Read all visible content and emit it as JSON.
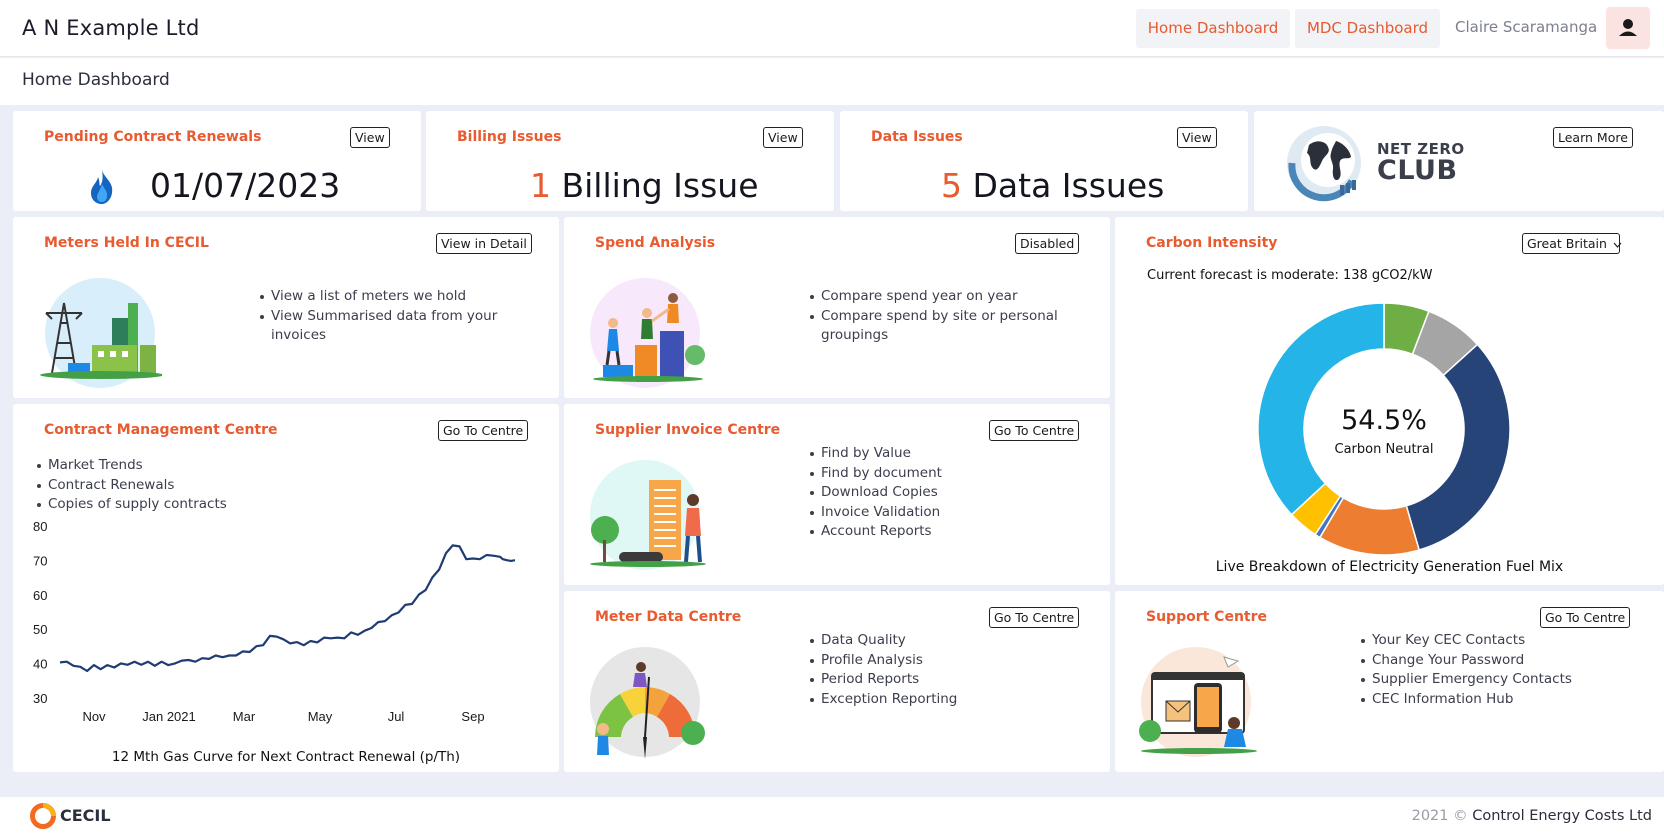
{
  "header": {
    "company": "A N Example Ltd",
    "nav": [
      "Home Dashboard",
      "MDC Dashboard"
    ],
    "user_name": "Claire Scaramanga",
    "avatar_icon": "user-icon"
  },
  "page": {
    "title": "Home Dashboard"
  },
  "summary_cards": {
    "renewals": {
      "title": "Pending Contract Renewals",
      "button": "View",
      "date": "01/07/2023",
      "icon": "gas-flame-icon"
    },
    "billing": {
      "title": "Billing Issues",
      "button": "View",
      "count": "1",
      "label": "Billing Issue"
    },
    "data": {
      "title": "Data Issues",
      "button": "View",
      "count": "5",
      "label": "Data Issues"
    },
    "netzero": {
      "logo_text_1": "NET ZERO",
      "logo_text_2": "CLUB",
      "button": "Learn More"
    }
  },
  "meters": {
    "title": "Meters Held In CECIL",
    "button": "View in Detail",
    "bullets": [
      "View a list of meters we hold",
      "View Summarised data from your invoices"
    ]
  },
  "spend": {
    "title": "Spend Analysis",
    "button": "Disabled",
    "bullets": [
      "Compare spend year on year",
      "Compare spend by site or personal groupings"
    ]
  },
  "carbon": {
    "title": "Carbon Intensity",
    "region": "Great Britain",
    "forecast": "Current forecast is moderate: 138 gCO2/kW",
    "center_value": "54.5%",
    "center_label": "Carbon Neutral",
    "caption": "Live Breakdown of Electricity Generation Fuel Mix"
  },
  "contract": {
    "title": "Contract Management Centre",
    "button": "Go To Centre",
    "bullets": [
      "Market Trends",
      "Contract Renewals",
      "Copies of supply contracts"
    ],
    "caption": "12 Mth Gas Curve for Next Contract Renewal (p/Th)"
  },
  "supplier": {
    "title": "Supplier Invoice Centre",
    "button": "Go To Centre",
    "bullets": [
      "Find by Value",
      "Find by document",
      "Download Copies",
      "Invoice Validation",
      "Account Reports"
    ]
  },
  "meterdata": {
    "title": "Meter Data Centre",
    "button": "Go To Centre",
    "bullets": [
      "Data Quality",
      "Profile Analysis",
      "Period Reports",
      "Exception Reporting"
    ]
  },
  "support": {
    "title": "Support Centre",
    "button": "Go To Centre",
    "bullets": [
      "Your Key CEC Contacts",
      "Change Your Password",
      "Supplier Emergency Contacts",
      "CEC Information Hub"
    ]
  },
  "footer": {
    "logo_text": "CECIL",
    "year": "2021 ©",
    "company": "Control Energy Costs Ltd"
  },
  "chart_data": [
    {
      "type": "line",
      "x_tick_labels": [
        "Nov",
        "Jan 2021",
        "Mar",
        "May",
        "Jul",
        "Sep"
      ],
      "y_ticks": [
        30,
        40,
        50,
        60,
        70,
        80
      ],
      "ylim": [
        30,
        80
      ],
      "xlabel": "12 Mth Gas Curve for Next Contract Renewal (p/Th)",
      "series": [
        {
          "color": "#1f3b73",
          "x": [
            0,
            5,
            10,
            15,
            20,
            25,
            30,
            35,
            40,
            45,
            50,
            55,
            60,
            65,
            70,
            75,
            80,
            85,
            90,
            95,
            100,
            105,
            110,
            115,
            120,
            125,
            130,
            135,
            140,
            145,
            150,
            155,
            160,
            165,
            170,
            175,
            180,
            185,
            190,
            195,
            200,
            205,
            210,
            215,
            220,
            225,
            230,
            235,
            240,
            245,
            250,
            255,
            260,
            265,
            270,
            275,
            280,
            285,
            290,
            295,
            300,
            305,
            310,
            315,
            320,
            325,
            327,
            330,
            333,
            336
          ],
          "y": [
            41,
            40.5,
            40,
            39,
            38.5,
            39.5,
            39,
            39.5,
            39.5,
            40,
            40.3,
            40.5,
            40.3,
            40.5,
            40,
            40.5,
            40.2,
            40,
            41.5,
            41,
            41.2,
            41.5,
            42,
            42.3,
            42.5,
            42.3,
            43,
            43.5,
            44,
            45,
            46,
            48,
            48.5,
            47,
            46.5,
            46.2,
            46,
            46.5,
            46.8,
            47.5,
            48,
            47.5,
            48,
            49,
            49,
            49.5,
            51,
            52,
            53,
            54,
            55.5,
            57,
            58,
            60,
            62,
            65,
            68,
            72,
            75,
            74,
            71,
            70.5,
            71,
            71.5,
            72,
            71,
            71,
            70,
            70.5,
            70
          ]
        }
      ]
    },
    {
      "type": "pie",
      "title": "Live Breakdown of Electricity Generation Fuel Mix",
      "center_label": "54.5% Carbon Neutral",
      "slices": [
        {
          "value": 5.8,
          "color": "#6fae45"
        },
        {
          "value": 7.5,
          "color": "#a5a5a5"
        },
        {
          "value": 32.2,
          "color": "#264478"
        },
        {
          "value": 13.0,
          "color": "#ed7d31"
        },
        {
          "value": 0.7,
          "color": "#4472c4"
        },
        {
          "value": 3.9,
          "color": "#ffc000"
        },
        {
          "value": 36.9,
          "color": "#24b4e8"
        }
      ]
    }
  ]
}
